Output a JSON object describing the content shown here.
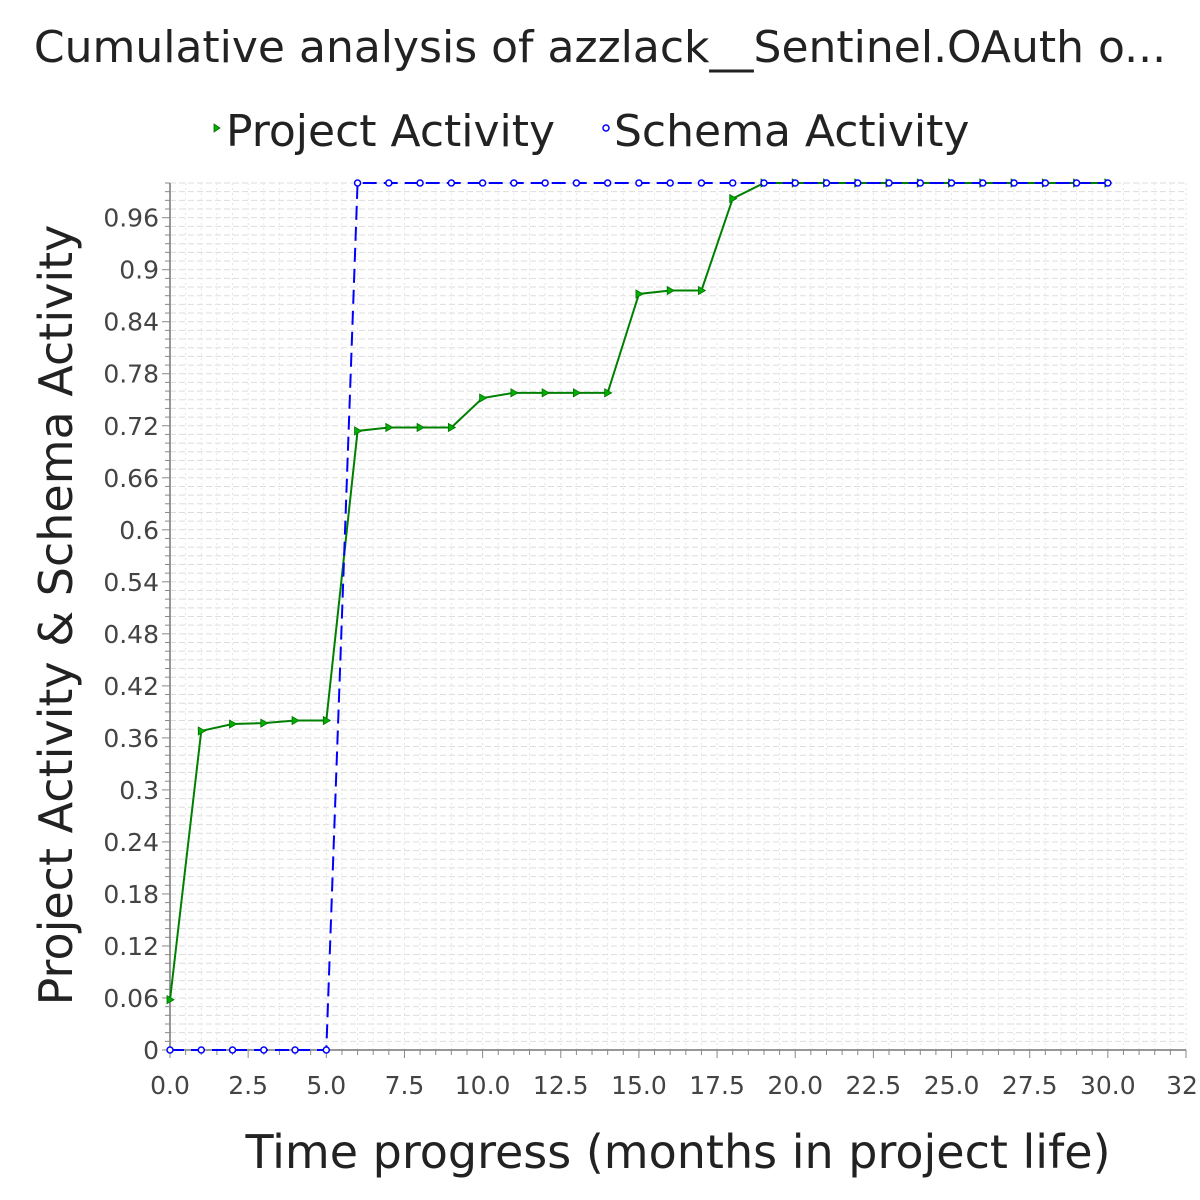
{
  "chart_data": {
    "type": "line",
    "title": "Cumulative analysis of azzlack__Sentinel.OAuth o...",
    "xlabel": "Time progress (months in project life)",
    "ylabel": "Project Activity & Schema Activity",
    "xlim": [
      0,
      32.5
    ],
    "ylim": [
      0,
      1.0
    ],
    "x_ticks": [
      "0.0",
      "2.5",
      "5.0",
      "7.5",
      "10.0",
      "12.5",
      "15.0",
      "17.5",
      "20.0",
      "22.5",
      "25.0",
      "27.5",
      "30.0",
      "32."
    ],
    "y_ticks": [
      "0",
      "0.06",
      "0.12",
      "0.18",
      "0.24",
      "0.3",
      "0.36",
      "0.42",
      "0.48",
      "0.54",
      "0.6",
      "0.66",
      "0.72",
      "0.78",
      "0.84",
      "0.9",
      "0.96"
    ],
    "grid": true,
    "legend_position": "top-center",
    "series": [
      {
        "name": "Project Activity",
        "color": "#008000",
        "marker": "triangle-right",
        "line_style": "solid",
        "x": [
          0,
          1,
          2,
          3,
          4,
          5,
          6,
          7,
          8,
          9,
          10,
          11,
          12,
          13,
          14,
          15,
          16,
          17,
          18,
          19,
          20,
          21,
          22,
          23,
          24,
          25,
          26,
          27,
          28,
          29,
          30
        ],
        "y": [
          0.058,
          0.368,
          0.376,
          0.377,
          0.38,
          0.38,
          0.714,
          0.718,
          0.718,
          0.718,
          0.752,
          0.758,
          0.758,
          0.758,
          0.758,
          0.872,
          0.876,
          0.876,
          0.982,
          1.0,
          1.0,
          1.0,
          1.0,
          1.0,
          1.0,
          1.0,
          1.0,
          1.0,
          1.0,
          1.0,
          1.0
        ]
      },
      {
        "name": "Schema Activity",
        "color": "#0000ff",
        "marker": "circle",
        "line_style": "dashed",
        "x": [
          0,
          1,
          2,
          3,
          4,
          5,
          6,
          7,
          8,
          9,
          10,
          11,
          12,
          13,
          14,
          15,
          16,
          17,
          18,
          19,
          20,
          21,
          22,
          23,
          24,
          25,
          26,
          27,
          28,
          29,
          30
        ],
        "y": [
          0,
          0,
          0,
          0,
          0,
          0,
          1.0,
          1.0,
          1.0,
          1.0,
          1.0,
          1.0,
          1.0,
          1.0,
          1.0,
          1.0,
          1.0,
          1.0,
          1.0,
          1.0,
          1.0,
          1.0,
          1.0,
          1.0,
          1.0,
          1.0,
          1.0,
          1.0,
          1.0,
          1.0,
          1.0
        ]
      }
    ]
  }
}
